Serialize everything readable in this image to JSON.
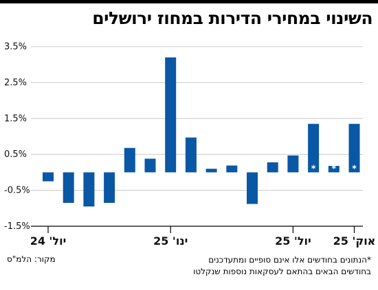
{
  "title": "השינוי במחירי הדירות במחוז ירושלים",
  "source": "מקור: הלמ\"ס",
  "footnote": [
    "*הנתונים בחודשים אלו אינם סופיים ומתעדכנים",
    "בחודשים הבאים בהתאם לעסקאות נוספות שנקלטו"
  ],
  "colors": {
    "bar": "#0a57a6",
    "axis": "#000000",
    "grid": "#c8c8c8",
    "star": "#ffffff"
  },
  "chart_data": {
    "type": "bar",
    "categories": [
      "יול' 24",
      "",
      "",
      "",
      "",
      "",
      "ינו' 25",
      "",
      "",
      "",
      "",
      "",
      "יול' 25",
      "",
      "",
      "אוק' 25"
    ],
    "values": [
      -0.25,
      -0.85,
      -0.95,
      -0.85,
      0.68,
      0.38,
      3.2,
      0.97,
      0.1,
      0.19,
      -0.88,
      0.28,
      0.47,
      1.35,
      0.18,
      1.35
    ],
    "preliminary": [
      false,
      false,
      false,
      false,
      false,
      false,
      false,
      false,
      false,
      false,
      false,
      false,
      false,
      true,
      true,
      true
    ],
    "preliminary_mark": "*",
    "category_labels_shown": [
      "יול' 24",
      "ינו' 25",
      "יול' 25",
      "אוק' 25"
    ],
    "yticks": [
      -1.5,
      -0.5,
      0.5,
      1.5,
      2.5,
      3.5
    ],
    "ytick_labels": [
      "-1.5%",
      "-0.5%",
      "0.5%",
      "1.5%",
      "2.5%",
      "3.5%"
    ],
    "ylim": [
      -1.5,
      3.5
    ],
    "grid": true,
    "xlabel": "",
    "ylabel": ""
  }
}
